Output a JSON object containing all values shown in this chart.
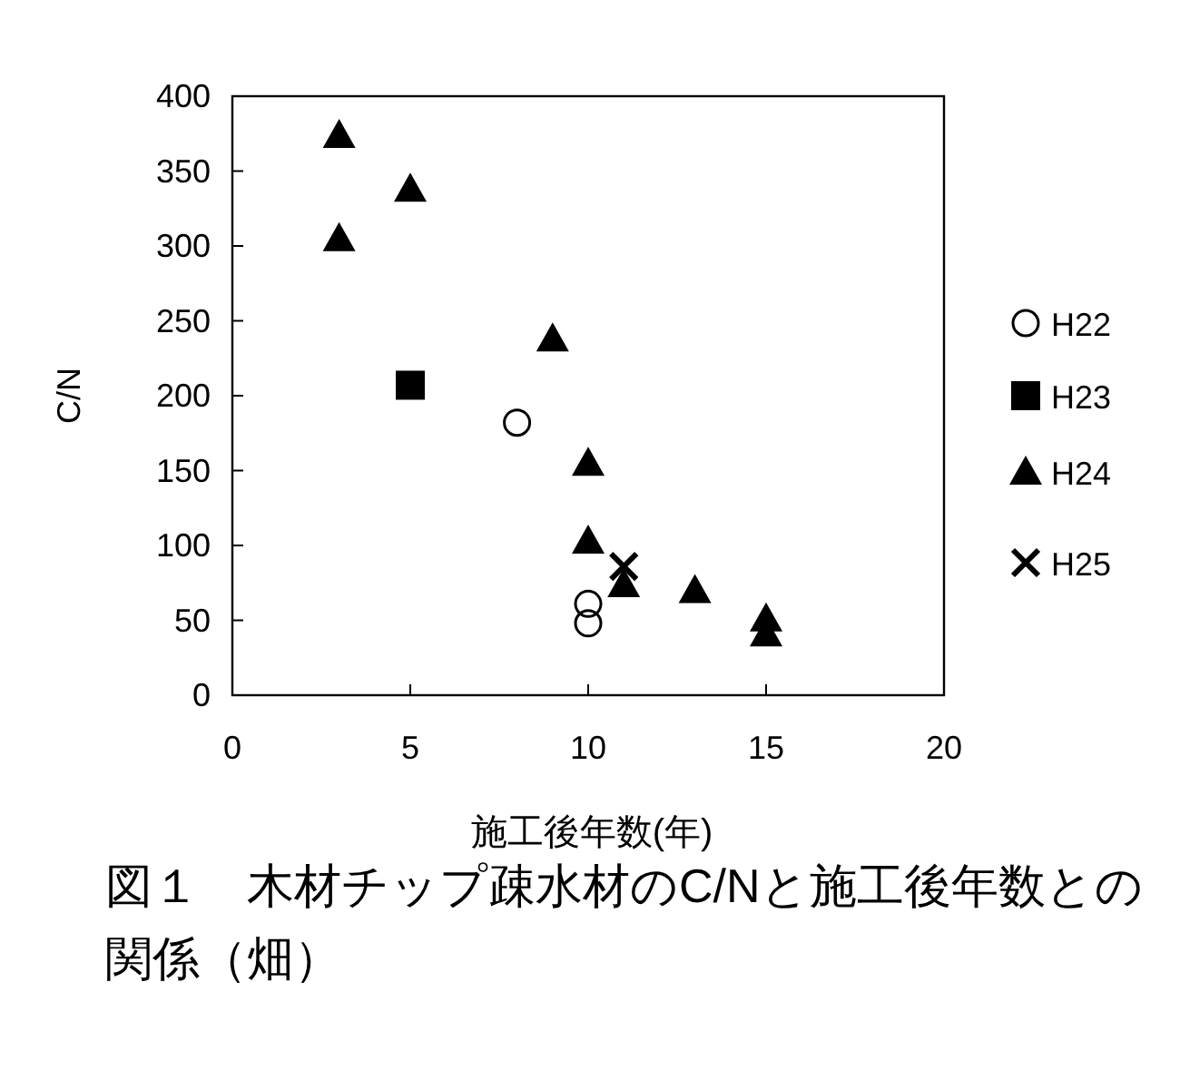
{
  "chart_data": {
    "type": "scatter",
    "title": "図１　木材チップ疎水材のC/Nと施工後年数との関係（畑）",
    "xlabel": "施工後年数(年)",
    "ylabel": "C/N",
    "xlim": [
      0,
      20
    ],
    "xticks": [
      0,
      5,
      10,
      15,
      20
    ],
    "ylim": [
      0,
      400
    ],
    "yticks": [
      0,
      50,
      100,
      150,
      200,
      250,
      300,
      350,
      400
    ],
    "grid": false,
    "legend": "right",
    "series": [
      {
        "name": "H22",
        "color": "#000000",
        "marker": "circle",
        "x": [
          8,
          10,
          10
        ],
        "values": [
          182,
          61,
          48
        ]
      },
      {
        "name": "H23",
        "color": "#000000",
        "marker": "square",
        "x": [
          5
        ],
        "values": [
          207
        ]
      },
      {
        "name": "H24",
        "color": "#000000",
        "marker": "triangle",
        "x": [
          3,
          3,
          5,
          9,
          10,
          10,
          11,
          13,
          15,
          15
        ],
        "values": [
          374,
          305,
          338,
          238,
          155,
          103,
          74,
          70,
          51,
          41
        ]
      },
      {
        "name": "H25",
        "color": "#000000",
        "marker": "cross",
        "x": [
          11
        ],
        "values": [
          86
        ]
      }
    ]
  }
}
